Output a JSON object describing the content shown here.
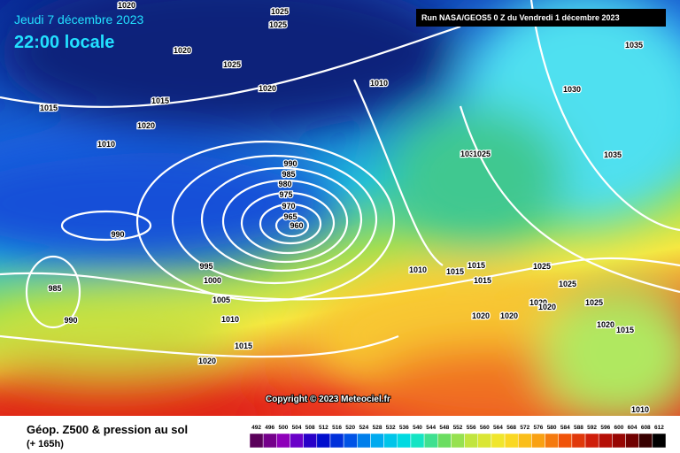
{
  "header": {
    "date": "Jeudi 7 décembre 2023",
    "time": "22:00 locale",
    "run": "Run NASA/GEOS5 0 Z du Vendredi 1 décembre 2023"
  },
  "copyright": "Copyright © 2023 Meteociel.fr",
  "footer": {
    "title": "Géop. Z500 & pression au sol",
    "lead": "(+ 165h)"
  },
  "scale": [
    "492",
    "496",
    "500",
    "504",
    "508",
    "512",
    "516",
    "520",
    "524",
    "528",
    "532",
    "536",
    "540",
    "544",
    "548",
    "552",
    "556",
    "560",
    "564",
    "568",
    "572",
    "576",
    "580",
    "584",
    "588",
    "592",
    "596",
    "600",
    "604",
    "608",
    "612"
  ],
  "isobars": [
    "1020",
    "1025",
    "1025",
    "1020",
    "1025",
    "1020",
    "1010",
    "1015",
    "1015",
    "1020",
    "1010",
    "990",
    "985",
    "980",
    "975",
    "970",
    "965",
    "960",
    "990",
    "995",
    "1000",
    "1005",
    "1010",
    "1015",
    "1020",
    "985",
    "990",
    "1010",
    "1015",
    "1015",
    "1015",
    "1025",
    "1025",
    "1020",
    "1020",
    "1020",
    "1020",
    "1025",
    "1020",
    "1015",
    "1035",
    "1030",
    "1035",
    "1030",
    "1025",
    "1010"
  ]
}
